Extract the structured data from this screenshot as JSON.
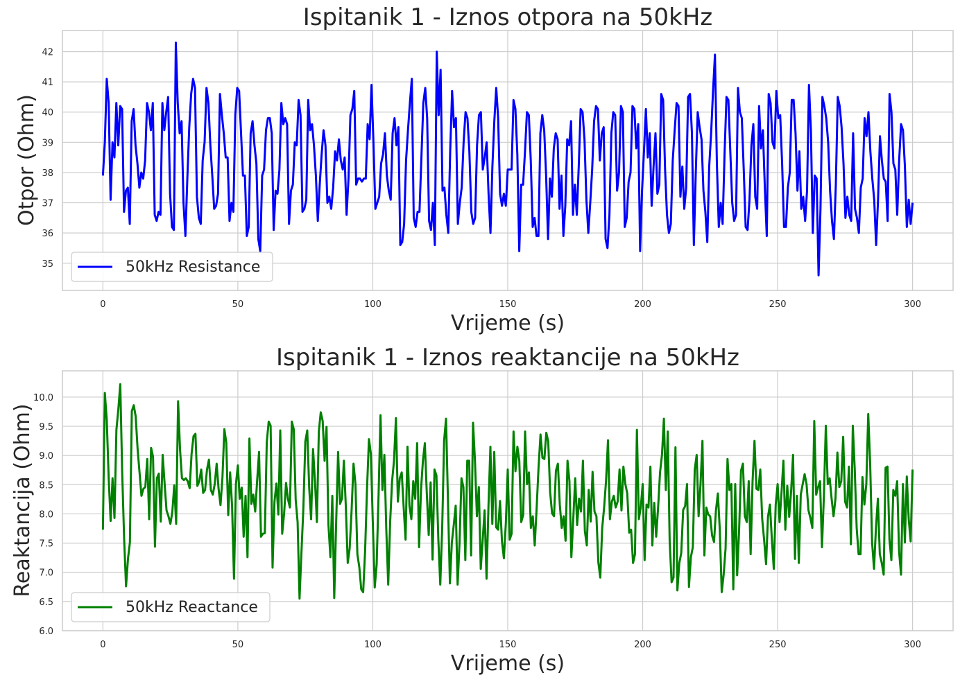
{
  "chart_data": [
    {
      "type": "line",
      "title": "Ispitanik 1 - Iznos otpora na 50kHz",
      "xlabel": "Vrijeme (s)",
      "ylabel": "Otpor (Ohm)",
      "xlim": [
        -15,
        315
      ],
      "ylim": [
        34.1,
        42.7
      ],
      "xticks": [
        0,
        50,
        100,
        150,
        200,
        250,
        300
      ],
      "yticks": [
        35,
        36,
        37,
        38,
        39,
        40,
        41,
        42
      ],
      "grid": true,
      "legend_position": "lower-left",
      "color": "#0000ff",
      "series": [
        {
          "name": "50kHz Resistance",
          "x_start": 0,
          "x_step": 1,
          "values": [
            37.9,
            39.0,
            41.1,
            40.3,
            37.1,
            39.0,
            38.5,
            40.3,
            38.9,
            40.2,
            40.1,
            36.7,
            37.4,
            37.5,
            36.3,
            39.7,
            40.1,
            38.9,
            38.3,
            37.5,
            38.0,
            37.8,
            38.4,
            40.3,
            40.0,
            39.4,
            40.3,
            36.6,
            36.4,
            36.7,
            36.6,
            40.3,
            39.4,
            40.0,
            40.5,
            37.3,
            36.2,
            36.1,
            42.3,
            40.3,
            39.3,
            39.7,
            37.0,
            35.9,
            37.8,
            39.5,
            40.6,
            41.1,
            40.8,
            37.2,
            36.5,
            36.3,
            38.4,
            39.0,
            40.8,
            40.3,
            38.9,
            37.9,
            36.8,
            36.9,
            37.3,
            40.6,
            39.9,
            39.3,
            38.5,
            38.5,
            36.4,
            37.0,
            36.7,
            39.9,
            40.8,
            40.7,
            39.3,
            37.9,
            37.9,
            35.9,
            36.2,
            39.3,
            39.7,
            38.9,
            38.3,
            35.8,
            35.4,
            37.9,
            38.1,
            39.4,
            39.8,
            39.8,
            39.3,
            36.1,
            37.4,
            37.3,
            38.1,
            40.3,
            39.6,
            39.8,
            39.6,
            36.3,
            37.4,
            37.6,
            39.0,
            38.9,
            40.4,
            39.9,
            36.7,
            36.8,
            37.1,
            40.4,
            39.4,
            39.6,
            38.9,
            37.9,
            36.4,
            37.6,
            38.6,
            39.4,
            38.9,
            37.0,
            37.2,
            36.8,
            37.5,
            38.7,
            38.4,
            39.1,
            38.4,
            38.1,
            38.5,
            36.6,
            37.8,
            39.9,
            40.1,
            40.7,
            37.6,
            37.8,
            37.8,
            37.7,
            37.8,
            37.8,
            39.6,
            39.1,
            40.9,
            39.0,
            36.8,
            37.0,
            37.2,
            38.3,
            38.6,
            39.3,
            37.9,
            37.4,
            37.1,
            39.3,
            39.8,
            38.9,
            39.5,
            35.6,
            35.7,
            36.3,
            38.4,
            39.4,
            40.3,
            41.1,
            36.5,
            36.2,
            36.7,
            36.7,
            38.5,
            40.3,
            40.8,
            39.8,
            36.4,
            36.1,
            37.0,
            35.6,
            42.0,
            39.9,
            41.4,
            37.4,
            37.5,
            36.6,
            36.0,
            38.7,
            40.7,
            39.5,
            39.8,
            36.3,
            37.0,
            37.5,
            39.0,
            40.0,
            39.8,
            38.7,
            36.7,
            36.3,
            36.5,
            38.9,
            39.9,
            40.0,
            38.1,
            38.5,
            39.0,
            37.3,
            36.0,
            38.2,
            39.7,
            40.8,
            39.8,
            37.3,
            36.9,
            37.3,
            36.9,
            38.1,
            38.1,
            38.1,
            40.4,
            40.1,
            38.6,
            35.4,
            37.6,
            37.6,
            38.7,
            40.0,
            39.9,
            38.4,
            36.2,
            36.5,
            35.9,
            35.9,
            39.3,
            39.9,
            39.4,
            37.9,
            35.8,
            37.8,
            37.2,
            38.8,
            39.3,
            39.1,
            36.8,
            37.9,
            35.9,
            36.9,
            39.1,
            38.9,
            39.7,
            36.6,
            37.6,
            36.6,
            38.2,
            40.1,
            40.0,
            39.1,
            37.1,
            36.0,
            37.0,
            38.1,
            39.7,
            40.2,
            40.1,
            38.4,
            39.3,
            39.5,
            35.8,
            35.5,
            36.6,
            39.3,
            40.0,
            39.9,
            37.4,
            38.0,
            40.2,
            40.0,
            36.2,
            36.5,
            37.7,
            38.0,
            40.2,
            40.1,
            38.8,
            39.6,
            35.4,
            37.4,
            38.7,
            40.1,
            38.5,
            39.3,
            36.9,
            38.2,
            39.3,
            37.3,
            37.6,
            40.6,
            40.4,
            38.1,
            36.6,
            36.0,
            36.3,
            38.4,
            39.4,
            40.3,
            40.2,
            37.2,
            38.2,
            36.8,
            37.5,
            40.5,
            40.6,
            39.3,
            35.6,
            38.0,
            40.0,
            39.5,
            39.1,
            37.4,
            36.7,
            35.7,
            38.2,
            39.3,
            40.7,
            41.9,
            38.3,
            36.2,
            37.0,
            36.3,
            38.6,
            40.5,
            40.4,
            38.7,
            37.0,
            36.4,
            36.6,
            40.8,
            40.0,
            39.8,
            38.1,
            36.2,
            36.1,
            37.1,
            38.9,
            39.6,
            37.2,
            36.8,
            40.2,
            38.8,
            39.4,
            37.5,
            35.9,
            40.6,
            40.3,
            39.0,
            38.8,
            40.7,
            39.8,
            39.9,
            38.3,
            36.2,
            36.2,
            37.5,
            38.0,
            40.4,
            40.4,
            39.3,
            37.4,
            38.7,
            36.8,
            37.2,
            36.4,
            37.4,
            40.9,
            39.4,
            36.0,
            37.9,
            37.8,
            34.6,
            36.8,
            40.5,
            40.2,
            39.8,
            39.0,
            37.4,
            36.4,
            35.8,
            37.6,
            40.5,
            40.2,
            39.5,
            38.3,
            36.5,
            37.2,
            36.6,
            36.4,
            39.3,
            36.8,
            36.5,
            36.0,
            37.5,
            37.8,
            39.8,
            39.2,
            40.0,
            38.7,
            37.8,
            37.1,
            35.6,
            37.1,
            39.2,
            38.4,
            37.8,
            37.7,
            36.4,
            40.6,
            40.0,
            38.3,
            38.1,
            36.6,
            38.4,
            39.6,
            39.4,
            38.2,
            36.2,
            37.1,
            36.3,
            37.0
          ]
        }
      ]
    },
    {
      "type": "line",
      "title": "Ispitanik 1 - Iznos reaktancije na 50kHz",
      "xlabel": "Vrijeme (s)",
      "ylabel": "Reaktancija (Ohm)",
      "xlim": [
        -15,
        315
      ],
      "ylim": [
        6.0,
        10.45
      ],
      "xticks": [
        0,
        50,
        100,
        150,
        200,
        250,
        300
      ],
      "yticks": [
        "6.0",
        "6.5",
        "7.0",
        "7.5",
        "8.0",
        "8.5",
        "9.0",
        "9.5",
        "10.0"
      ],
      "grid": true,
      "legend_position": "lower-left",
      "color": "#008000",
      "series": [
        {
          "name": "50kHz Reactance",
          "x_start": 0,
          "x_step": 1,
          "values": [
            7.73,
            10.07,
            9.61,
            8.61,
            7.88,
            8.61,
            7.93,
            9.44,
            9.79,
            10.22,
            8.71,
            7.58,
            6.76,
            7.23,
            7.51,
            9.76,
            9.86,
            9.67,
            9.11,
            8.71,
            8.31,
            8.43,
            8.46,
            8.94,
            7.91,
            9.13,
            8.98,
            7.44,
            8.61,
            8.69,
            7.87,
            9.01,
            8.52,
            8.06,
            7.96,
            7.83,
            8.03,
            8.49,
            7.83,
            9.93,
            9.11,
            8.61,
            8.58,
            8.61,
            8.56,
            8.44,
            9.03,
            9.33,
            9.37,
            8.48,
            8.56,
            8.76,
            8.36,
            8.41,
            8.76,
            8.93,
            8.41,
            8.33,
            8.51,
            8.86,
            8.43,
            8.15,
            8.62,
            9.45,
            9.22,
            7.98,
            8.71,
            8.14,
            6.89,
            8.51,
            8.83,
            8.26,
            8.45,
            7.61,
            8.31,
            7.26,
            9.29,
            8.17,
            8.33,
            8.04,
            8.57,
            9.06,
            7.61,
            7.66,
            7.67,
            9.23,
            9.58,
            9.51,
            7.08,
            8.21,
            8.52,
            7.99,
            9.43,
            7.66,
            8.01,
            8.53,
            8.25,
            8.11,
            9.58,
            9.45,
            8.24,
            7.86,
            6.55,
            7.35,
            8.11,
            9.24,
            9.43,
            8.45,
            7.91,
            9.11,
            8.56,
            7.86,
            9.41,
            9.74,
            9.59,
            8.91,
            9.49,
            7.81,
            7.26,
            8.31,
            6.56,
            7.86,
            9.06,
            8.17,
            8.26,
            8.91,
            8.13,
            7.16,
            7.41,
            8.06,
            8.86,
            8.51,
            7.31,
            7.09,
            6.71,
            6.66,
            7.36,
            8.43,
            9.28,
            9.03,
            7.86,
            6.74,
            7.13,
            8.33,
            9.69,
            8.41,
            9.01,
            7.73,
            6.79,
            7.86,
            8.56,
            8.91,
            9.64,
            8.21,
            8.61,
            8.71,
            8.12,
            7.56,
            9.15,
            8.14,
            7.91,
            8.56,
            8.26,
            9.21,
            7.43,
            8.41,
            8.91,
            9.21,
            8.36,
            7.64,
            8.54,
            7.22,
            8.76,
            8.66,
            7.56,
            6.79,
            7.77,
            9.26,
            9.63,
            8.21,
            6.81,
            7.51,
            7.81,
            8.14,
            6.79,
            7.51,
            8.61,
            8.46,
            7.21,
            8.91,
            8.91,
            7.29,
            9.56,
            8.91,
            7.96,
            8.46,
            7.06,
            7.55,
            8.06,
            6.89,
            8.13,
            9.15,
            7.83,
            9.06,
            7.77,
            7.73,
            8.22,
            7.53,
            7.24,
            7.83,
            8.76,
            7.56,
            7.66,
            9.41,
            8.73,
            9.15,
            8.91,
            7.86,
            7.98,
            9.41,
            8.51,
            8.71,
            7.76,
            7.96,
            7.46,
            8.11,
            8.81,
            9.36,
            8.96,
            8.94,
            9.39,
            9.24,
            8.37,
            8.01,
            7.96,
            8.74,
            8.86,
            8.16,
            7.76,
            7.96,
            7.54,
            8.91,
            8.56,
            7.26,
            7.92,
            8.61,
            7.81,
            8.26,
            8.04,
            8.91,
            7.71,
            7.46,
            8.41,
            7.87,
            8.72,
            8.04,
            7.96,
            7.17,
            6.91,
            7.76,
            8.11,
            8.57,
            9.26,
            7.91,
            8.21,
            8.31,
            8.11,
            8.21,
            8.76,
            8.06,
            8.81,
            8.51,
            8.35,
            7.68,
            7.73,
            7.16,
            7.31,
            9.44,
            7.91,
            8.11,
            8.51,
            7.21,
            8.16,
            8.11,
            8.81,
            7.46,
            8.19,
            7.61,
            8.11,
            8.71,
            9.01,
            9.63,
            8.41,
            9.41,
            7.53,
            6.83,
            6.91,
            9.14,
            6.69,
            7.16,
            7.33,
            8.07,
            8.13,
            8.51,
            6.75,
            7.26,
            7.43,
            8.76,
            9.01,
            7.96,
            8.51,
            9.25,
            7.29,
            8.11,
            7.99,
            7.96,
            7.63,
            7.52,
            8.06,
            8.35,
            7.73,
            6.66,
            6.96,
            7.41,
            8.94,
            8.41,
            8.51,
            6.71,
            8.51,
            6.95,
            7.71,
            8.74,
            8.86,
            7.96,
            7.86,
            8.56,
            7.31,
            8.56,
            9.25,
            8.43,
            8.41,
            8.76,
            7.91,
            7.55,
            7.14,
            7.95,
            8.16,
            7.57,
            7.06,
            8.16,
            8.51,
            7.86,
            8.36,
            8.91,
            7.73,
            8.48,
            7.95,
            8.39,
            9.01,
            7.23,
            8.31,
            7.16,
            8.33,
            8.51,
            8.68,
            8.51,
            8.06,
            7.93,
            7.76,
            9.59,
            8.33,
            8.46,
            8.56,
            7.43,
            8.31,
            9.51,
            8.51,
            8.61,
            8.26,
            7.96,
            8.26,
            9.05,
            8.46,
            8.56,
            9.32,
            8.21,
            8.11,
            8.81,
            7.48,
            9.51,
            8.76,
            7.76,
            7.31,
            7.31,
            8.63,
            8.16,
            8.51,
            9.71,
            8.86,
            7.51,
            7.06,
            7.76,
            8.26,
            7.31,
            7.16,
            6.96,
            8.79,
            8.81,
            7.56,
            7.21,
            8.41,
            8.31,
            8.56,
            7.36,
            6.96,
            8.51,
            7.51,
            8.64,
            7.91,
            7.53,
            8.76
          ]
        }
      ]
    }
  ]
}
